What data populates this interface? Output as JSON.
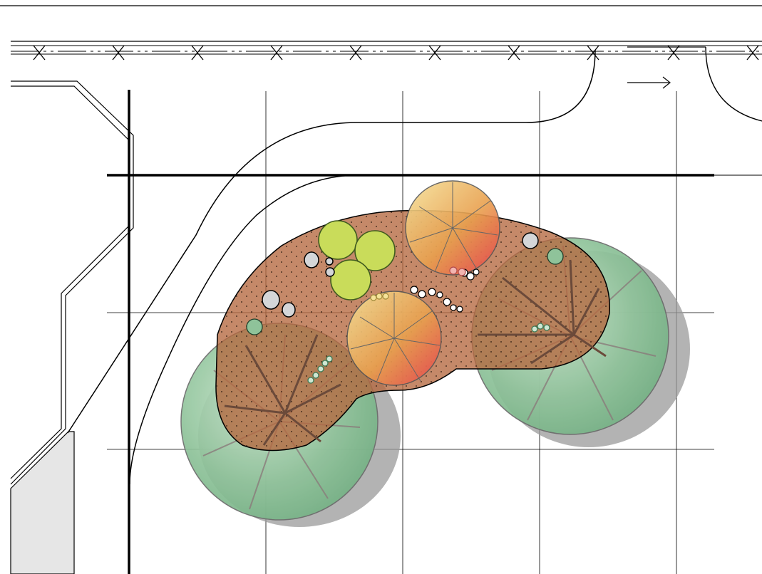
{
  "drawing": {
    "kind": "landscape-site-plan",
    "background": "#ffffff",
    "colors": {
      "linework": "#000000",
      "mulch_bed": "#b5683f",
      "shade_tree_canopy": "#8fc39a",
      "shade_tree_shadow": "#9a9a9a",
      "shrub": "#c9dc5a",
      "ornamental_tree_top": "#f0d47a",
      "ornamental_tree_bottom": "#e8555a",
      "boulder": "#d4d6d8",
      "adjacent_building": "#e6e6e6",
      "perennial_ring": "#3d7a55"
    },
    "legend": [],
    "icons": [
      "north-arrow-icon"
    ],
    "labels": []
  }
}
